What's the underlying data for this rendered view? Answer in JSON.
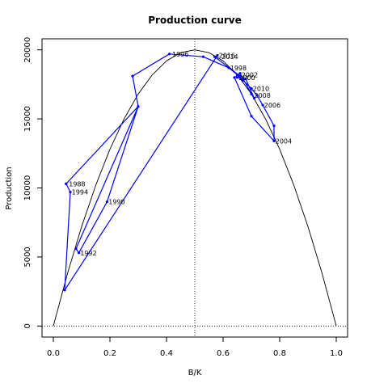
{
  "chart_data": {
    "type": "line",
    "title": "Production curve",
    "xlabel": "B/K",
    "ylabel": "Production",
    "xlim": [
      -0.04,
      1.04
    ],
    "ylim": [
      -800,
      20800
    ],
    "xticks": [
      0.0,
      0.2,
      0.4,
      0.6,
      0.8,
      1.0
    ],
    "xtick_labels": [
      "0.0",
      "0.2",
      "0.4",
      "0.6",
      "0.8",
      "1.0"
    ],
    "yticks": [
      0,
      5000,
      10000,
      15000,
      20000
    ],
    "ytick_labels": [
      "0",
      "5000",
      "10000",
      "15000",
      "20000"
    ],
    "grid": false,
    "reference_lines": [
      {
        "orientation": "vertical",
        "value": 0.5,
        "style": "dotted"
      },
      {
        "orientation": "horizontal",
        "value": 0,
        "style": "dotted"
      }
    ],
    "series": [
      {
        "kind": "curve",
        "color": "#000000",
        "x": [
          0,
          0.05,
          0.1,
          0.15,
          0.2,
          0.25,
          0.3,
          0.35,
          0.4,
          0.45,
          0.5,
          0.55,
          0.6,
          0.65,
          0.7,
          0.75,
          0.8,
          0.85,
          0.9,
          0.95,
          1.0
        ],
        "y": [
          0,
          3800,
          7200,
          10200,
          12800,
          15000,
          16800,
          18200,
          19200,
          19800,
          20000,
          19800,
          19200,
          18200,
          16800,
          15000,
          12800,
          10200,
          7200,
          3800,
          0
        ]
      },
      {
        "kind": "trajectory",
        "color": "#0000ff",
        "x": [
          0.045,
          0.3,
          0.08,
          0.09,
          0.19,
          0.3,
          0.28,
          0.41,
          0.53,
          0.62,
          0.65,
          0.67,
          0.7,
          0.72,
          0.74,
          0.78,
          0.78,
          0.7,
          0.64,
          0.66,
          0.7,
          0.71,
          0.68,
          0.65,
          0.66,
          0.57,
          0.58,
          0.04,
          0.06,
          0.045
        ],
        "y": [
          10300,
          15900,
          5600,
          5300,
          9000,
          15900,
          18100,
          19700,
          19500,
          18700,
          18200,
          17800,
          17200,
          16700,
          16000,
          14500,
          13400,
          15200,
          18000,
          18300,
          16800,
          16500,
          17900,
          18000,
          18100,
          19500,
          19600,
          2600,
          9700,
          10300
        ]
      }
    ],
    "point_labels": [
      {
        "text": "1988",
        "x": 0.055,
        "y": 10300
      },
      {
        "text": "1994",
        "x": 0.065,
        "y": 9700
      },
      {
        "text": "1990",
        "x": 0.195,
        "y": 9000
      },
      {
        "text": "1992",
        "x": 0.095,
        "y": 5300
      },
      {
        "text": "1996",
        "x": 0.42,
        "y": 19700
      },
      {
        "text": "2016",
        "x": 0.585,
        "y": 19600
      },
      {
        "text": "2014",
        "x": 0.595,
        "y": 19500
      },
      {
        "text": "1998",
        "x": 0.625,
        "y": 18700
      },
      {
        "text": "2002",
        "x": 0.665,
        "y": 18200
      },
      {
        "text": "2000",
        "x": 0.655,
        "y": 18000
      },
      {
        "text": "2010",
        "x": 0.705,
        "y": 17200
      },
      {
        "text": "2008",
        "x": 0.71,
        "y": 16700
      },
      {
        "text": "2006",
        "x": 0.745,
        "y": 16000
      },
      {
        "text": "2004",
        "x": 0.785,
        "y": 13400
      }
    ]
  }
}
